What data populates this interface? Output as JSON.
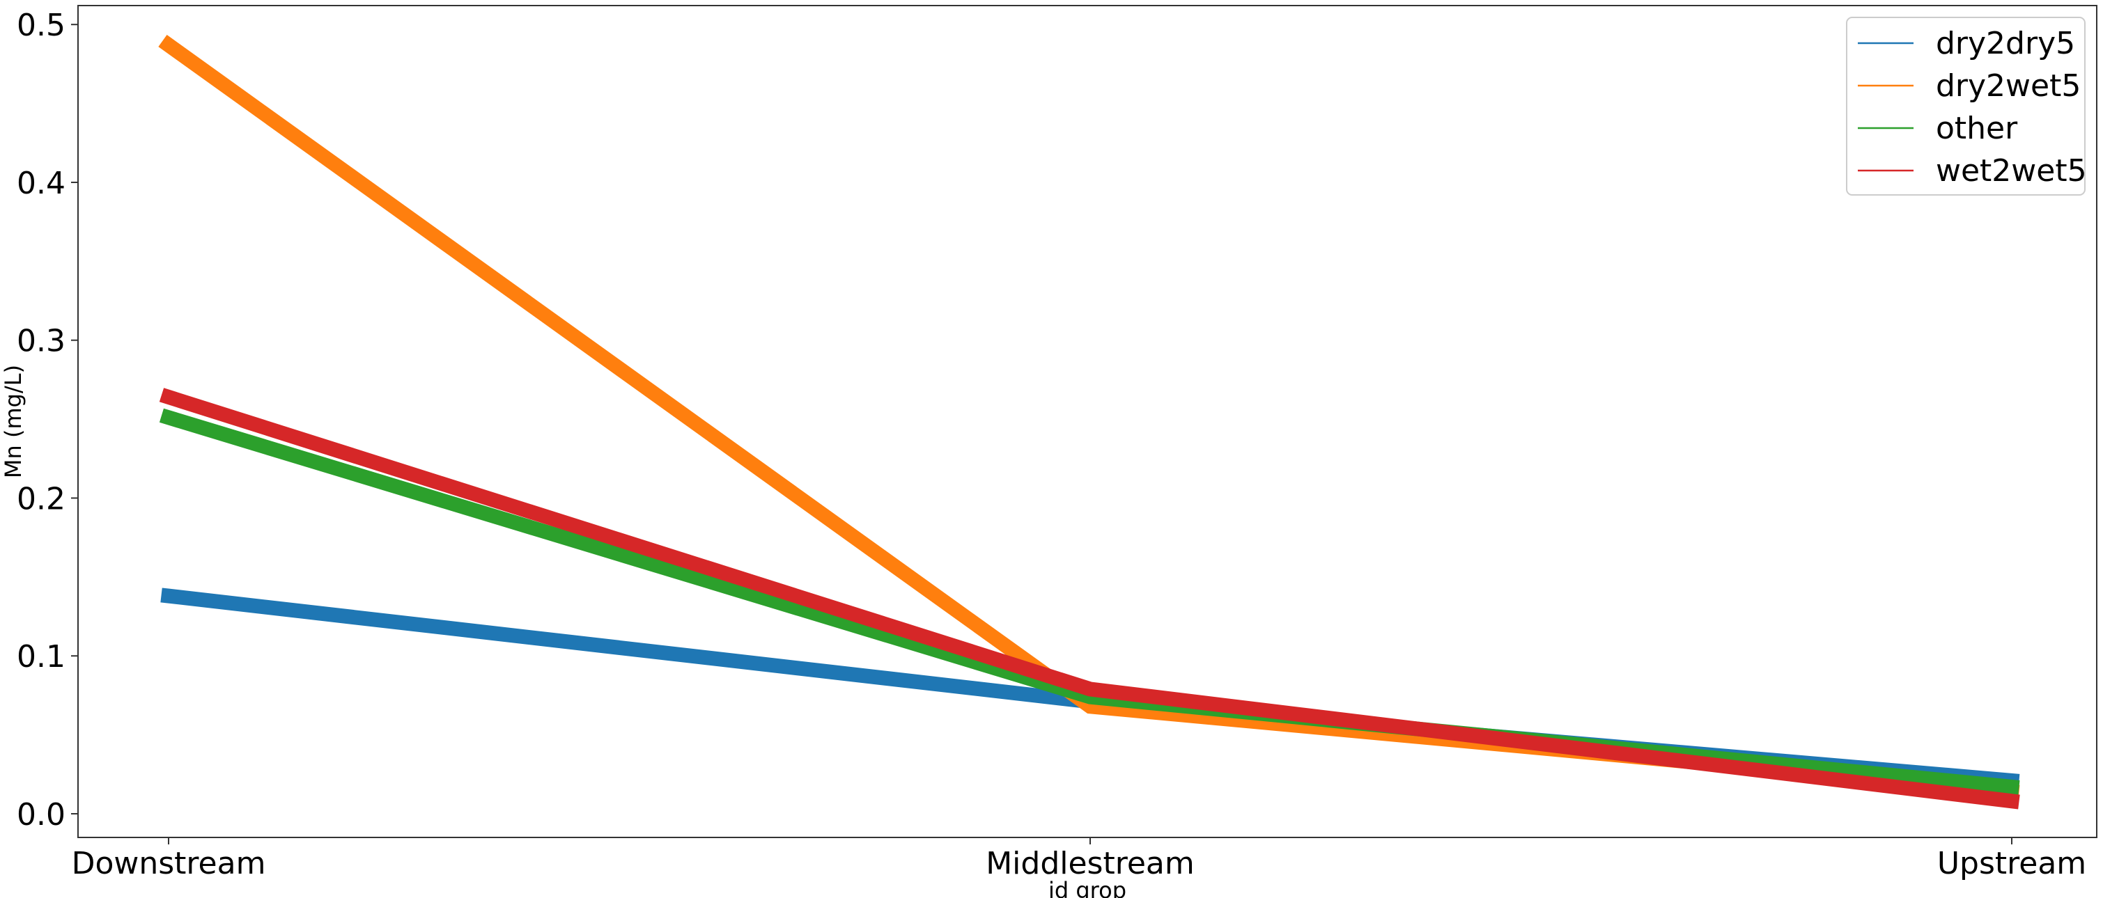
{
  "chart_data": {
    "type": "line",
    "title": "",
    "xlabel": "id grop",
    "ylabel": "Mn (mg/L)",
    "categories": [
      "Downstream",
      "Middlestream",
      "Upstream"
    ],
    "ylim": [
      -0.015,
      0.512
    ],
    "yticks": [
      0.0,
      0.1,
      0.2,
      0.3,
      0.4,
      0.5
    ],
    "ytick_labels": [
      "0.0",
      "0.1",
      "0.2",
      "0.3",
      "0.4",
      "0.5"
    ],
    "grid": false,
    "legend_position": "top-right",
    "series": [
      {
        "name": "dry2dry5",
        "color": "#1f77b4",
        "values": [
          0.138,
          0.071,
          0.021
        ]
      },
      {
        "name": "dry2wet5",
        "color": "#ff7f0e",
        "values": [
          0.487,
          0.068,
          0.014
        ]
      },
      {
        "name": "other",
        "color": "#2ca02c",
        "values": [
          0.251,
          0.074,
          0.017
        ]
      },
      {
        "name": "wet2wet5",
        "color": "#d62728",
        "values": [
          0.264,
          0.079,
          0.008
        ]
      }
    ]
  }
}
